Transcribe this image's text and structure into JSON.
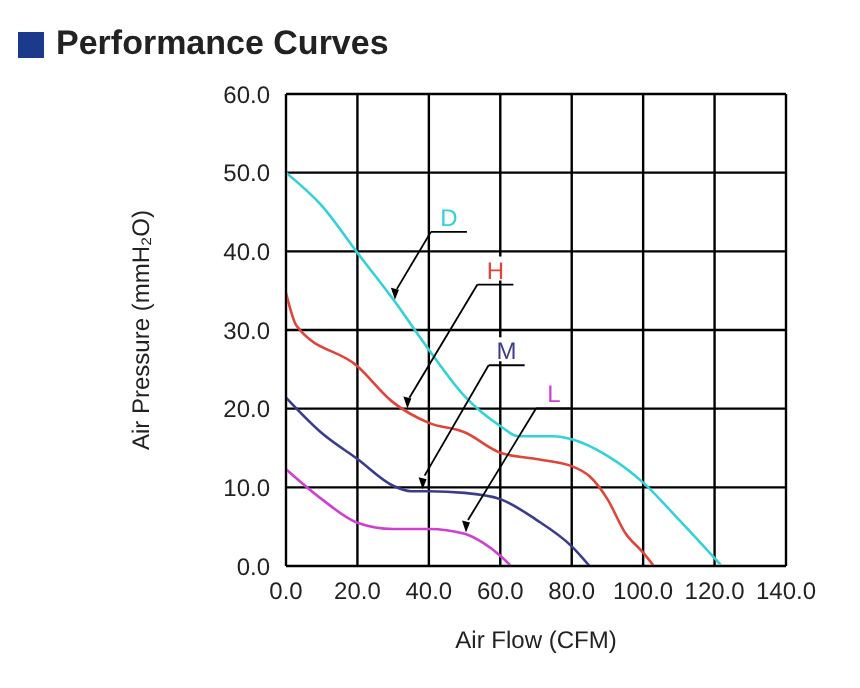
{
  "chart_data": {
    "type": "line",
    "title": "Performance Curves",
    "xlabel": "Air Flow (CFM)",
    "ylabel": "Air Pressure (mmH₂O)",
    "xlim": [
      0,
      140
    ],
    "ylim": [
      0,
      60
    ],
    "xticks": [
      {
        "value": 0,
        "label": "0.0"
      },
      {
        "value": 20,
        "label": "20.0"
      },
      {
        "value": 40,
        "label": "40.0"
      },
      {
        "value": 60,
        "label": "60.0"
      },
      {
        "value": 80,
        "label": "80.0"
      },
      {
        "value": 100,
        "label": "100.0"
      },
      {
        "value": 120,
        "label": "120.0"
      },
      {
        "value": 140,
        "label": "140.0"
      }
    ],
    "yticks": [
      {
        "value": 0,
        "label": "0.0"
      },
      {
        "value": 10,
        "label": "10.0"
      },
      {
        "value": 20,
        "label": "20.0"
      },
      {
        "value": 30,
        "label": "30.0"
      },
      {
        "value": 40,
        "label": "40.0"
      },
      {
        "value": 50,
        "label": "50.0"
      },
      {
        "value": 60,
        "label": "60.0"
      }
    ],
    "grid": true,
    "legend": false,
    "marker": "none",
    "line_style": "solid",
    "series": [
      {
        "name": "D",
        "color": "#33d2d8",
        "x": [
          0,
          10,
          20,
          30,
          40,
          50,
          60,
          65,
          75,
          80,
          90,
          100,
          110,
          120,
          122
        ],
        "values": [
          50,
          45.8,
          39.8,
          33.9,
          27.5,
          21.6,
          17.8,
          16.5,
          16.5,
          16.1,
          14,
          10.6,
          5.9,
          1,
          0
        ]
      },
      {
        "name": "H",
        "color": "#e0453a",
        "x": [
          0,
          3,
          20,
          30,
          40,
          50,
          60,
          70,
          80,
          85,
          90,
          95,
          100,
          103
        ],
        "values": [
          34.7,
          30.5,
          25.4,
          20.8,
          18.2,
          17,
          14.4,
          13.6,
          12.7,
          11.4,
          8.5,
          4.2,
          1.7,
          0
        ]
      },
      {
        "name": "M",
        "color": "#3c3c8c",
        "x": [
          0,
          10,
          20,
          30,
          35,
          40,
          50,
          60,
          70,
          80,
          85
        ],
        "values": [
          21.4,
          16.9,
          13.6,
          10.2,
          9.5,
          9.5,
          9.3,
          8.5,
          5.9,
          2.5,
          0
        ]
      },
      {
        "name": "L",
        "color": "#d040d0",
        "x": [
          0,
          10,
          20,
          30,
          40,
          50,
          55,
          60,
          63
        ],
        "values": [
          12.3,
          8.5,
          5.5,
          4.7,
          4.7,
          4.1,
          3,
          1.3,
          0
        ]
      }
    ]
  }
}
